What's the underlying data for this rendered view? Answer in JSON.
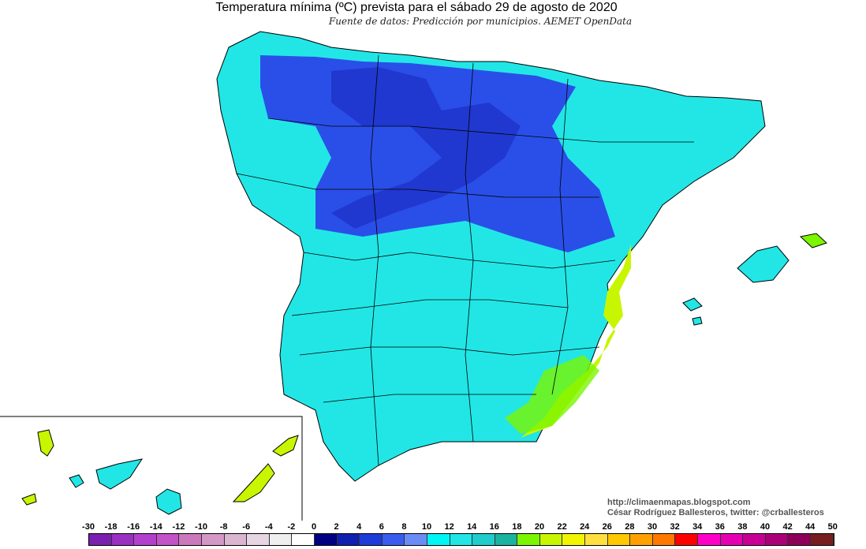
{
  "header": {
    "title": "Temperatura mínima (ºC) prevista para el sábado 29 de agosto de 2020",
    "subtitle": "Fuente de datos: Predicción por municipios. AEMET OpenData"
  },
  "credits": {
    "url": "http://climaenmapas.blogspot.com",
    "author": "César Rodríguez Ballesteros, twitter: @crballesteros"
  },
  "legend": {
    "labels": [
      "-30",
      "-18",
      "-16",
      "-14",
      "-12",
      "-10",
      "-8",
      "-6",
      "-4",
      "-2",
      "0",
      "2",
      "4",
      "6",
      "8",
      "10",
      "12",
      "14",
      "16",
      "18",
      "20",
      "22",
      "24",
      "26",
      "28",
      "30",
      "32",
      "34",
      "36",
      "38",
      "40",
      "42",
      "44",
      "50"
    ],
    "colors": [
      "#7a1fb0",
      "#9a2fc2",
      "#b33fcf",
      "#c452c8",
      "#cc78bd",
      "#d399c6",
      "#dcb5d2",
      "#e6d6e3",
      "#efefef",
      "#ffffff",
      "#000080",
      "#0f1fb0",
      "#1e3cd8",
      "#3a5df0",
      "#6a8df5",
      "#00f5f5",
      "#22e6e6",
      "#20cccc",
      "#1ab2a0",
      "#7cf500",
      "#c8f500",
      "#f2f500",
      "#ffe040",
      "#ffc800",
      "#ffa000",
      "#ff7800",
      "#ff0000",
      "#ff00c8",
      "#e600b4",
      "#c80096",
      "#aa0078",
      "#8c005a",
      "#781e1e"
    ]
  },
  "colors": {
    "sea": "#ffffff",
    "land_warm": "#22e6e6",
    "land_cool": "#2a4fe8",
    "land_hot": "#c8f500",
    "borders": "#000000"
  }
}
